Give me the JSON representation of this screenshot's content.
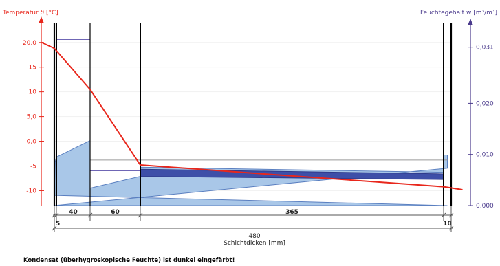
{
  "chart_data": {
    "type": "line",
    "left_axis": {
      "label": "Temperatur ϑ [°C]",
      "ylim": [
        -13,
        24
      ],
      "ticks": [
        {
          "value": 20,
          "label": "20,0"
        },
        {
          "value": 15,
          "label": "15"
        },
        {
          "value": 10,
          "label": "10"
        },
        {
          "value": 5,
          "label": "5,0"
        },
        {
          "value": 0,
          "label": "0,0"
        },
        {
          "value": -5,
          "label": "-5"
        },
        {
          "value": -10,
          "label": "-10"
        }
      ],
      "color": "#e8271c"
    },
    "right_axis": {
      "label": "Feuchtegehalt  w [m³/m³]",
      "ylim": [
        0,
        0.0358
      ],
      "ticks": [
        {
          "value": 0.031,
          "label": "0,031"
        },
        {
          "value": 0.02,
          "label": "0,020"
        },
        {
          "value": 0.01,
          "label": "0,010"
        },
        {
          "value": 0.0,
          "label": "0,000"
        }
      ],
      "color": "#4a3a8c"
    },
    "x_axis": {
      "label": "Schichtdicken [mm]",
      "total_label": "480",
      "layers": [
        {
          "thickness": 5,
          "label": "5"
        },
        {
          "thickness": 40,
          "label": "40"
        },
        {
          "thickness": 60,
          "label": "60"
        },
        {
          "thickness": 365,
          "label": "365"
        },
        {
          "thickness": 10,
          "label": "10"
        }
      ]
    },
    "temperature_line": {
      "x": [
        -15,
        0,
        45,
        105,
        470,
        495
      ],
      "y": [
        20.0,
        18.8,
        10.5,
        -4.8,
        -9.2,
        -9.8
      ]
    },
    "moisture_area": {
      "x": [
        0,
        2,
        5,
        45,
        45,
        105,
        105,
        105,
        470,
        470,
        475,
        475
      ],
      "y": [
        0.002,
        0.0085,
        0.0095,
        0.0127,
        0.0034,
        0.0057,
        0.0057,
        0.0075,
        0.0065,
        0.0099,
        0.0099,
        0.0073
      ]
    },
    "condensate_band": {
      "x": [
        105,
        470
      ],
      "y_top": [
        0.0071,
        0.0062
      ],
      "y_bottom": [
        0.0057,
        0.0051
      ]
    },
    "reference_lines": [
      {
        "x": [
          0,
          475
        ],
        "y": 0.0185
      },
      {
        "x": [
          45,
          475
        ],
        "y": 0.0089
      },
      {
        "x": [
          45,
          105
        ],
        "y": 0.0068
      },
      {
        "x": [
          5,
          45
        ],
        "y": 0.0325
      }
    ],
    "note": "Kondensat (überhygroskopische Feuchte) ist dunkel eingefärbt!"
  }
}
